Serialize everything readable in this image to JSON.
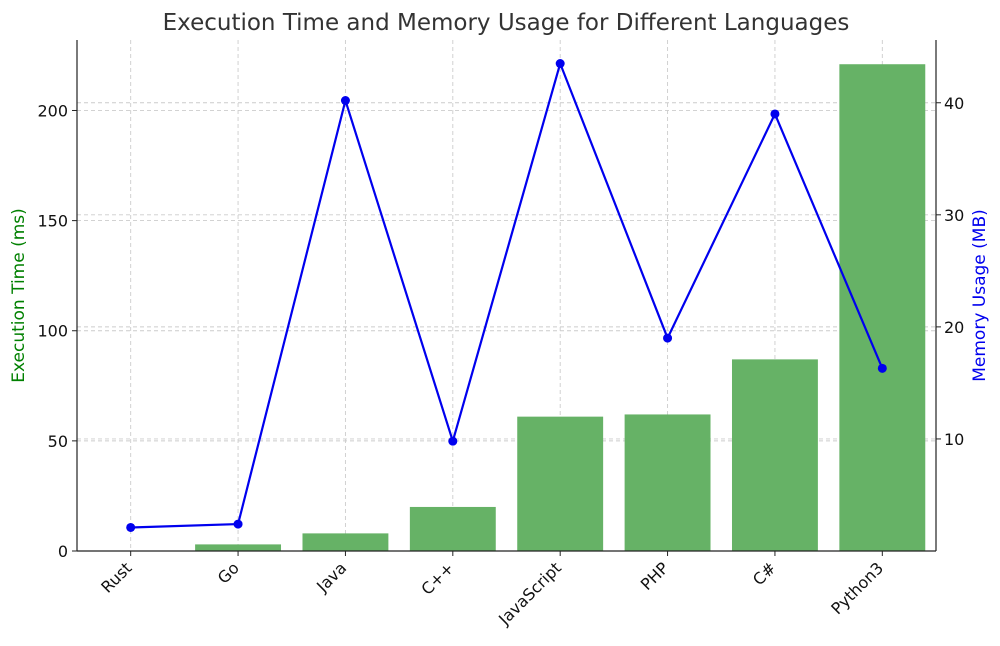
{
  "chart_data": {
    "type": "bar",
    "title": "Execution Time and Memory Usage for Different Languages",
    "categories": [
      "Rust",
      "Go",
      "Java",
      "C++",
      "JavaScript",
      "PHP",
      "C#",
      "Python3"
    ],
    "series": [
      {
        "name": "Execution Time (ms)",
        "type": "bar",
        "axis": "left",
        "color": "#66b266",
        "values": [
          0,
          3,
          8,
          20,
          61,
          62,
          87,
          221
        ]
      },
      {
        "name": "Memory Usage (MB)",
        "type": "line",
        "axis": "right",
        "color": "#0000ee",
        "values": [
          2.1,
          2.4,
          40.2,
          9.8,
          43.5,
          19.0,
          39.0,
          16.3
        ]
      }
    ],
    "ylabel": "Execution Time (ms)",
    "ylabel_color": "#008000",
    "y_ticks": [
      0,
      50,
      100,
      150,
      200
    ],
    "ylim": [
      0,
      232
    ],
    "y2label": "Memory Usage (MB)",
    "y2label_color": "#0000ee",
    "y2_ticks": [
      10,
      20,
      30,
      40
    ],
    "y2lim": [
      0,
      45.6
    ],
    "grid": true
  }
}
